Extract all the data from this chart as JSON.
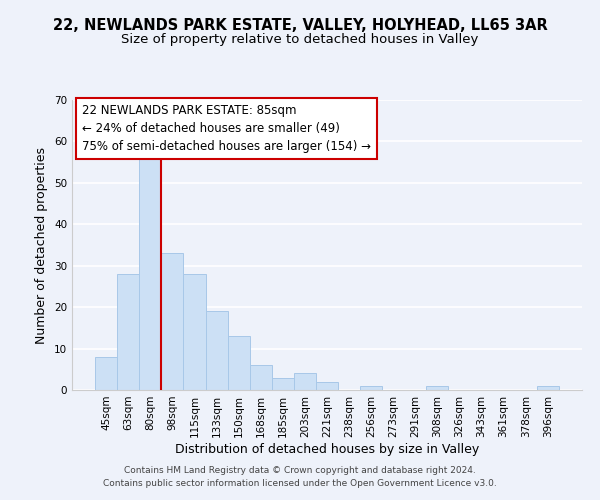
{
  "title": "22, NEWLANDS PARK ESTATE, VALLEY, HOLYHEAD, LL65 3AR",
  "subtitle": "Size of property relative to detached houses in Valley",
  "xlabel": "Distribution of detached houses by size in Valley",
  "ylabel": "Number of detached properties",
  "bar_color": "#cce0f5",
  "bar_edge_color": "#a8c8e8",
  "background_color": "#eef2fa",
  "grid_color": "#ffffff",
  "bin_labels": [
    "45sqm",
    "63sqm",
    "80sqm",
    "98sqm",
    "115sqm",
    "133sqm",
    "150sqm",
    "168sqm",
    "185sqm",
    "203sqm",
    "221sqm",
    "238sqm",
    "256sqm",
    "273sqm",
    "291sqm",
    "308sqm",
    "326sqm",
    "343sqm",
    "361sqm",
    "378sqm",
    "396sqm"
  ],
  "bar_values": [
    8,
    28,
    57,
    33,
    28,
    19,
    13,
    6,
    3,
    4,
    2,
    0,
    1,
    0,
    0,
    1,
    0,
    0,
    0,
    0,
    1
  ],
  "ylim": [
    0,
    70
  ],
  "yticks": [
    0,
    10,
    20,
    30,
    40,
    50,
    60,
    70
  ],
  "property_label": "22 NEWLANDS PARK ESTATE: 85sqm",
  "annotation_line1": "← 24% of detached houses are smaller (49)",
  "annotation_line2": "75% of semi-detached houses are larger (154) →",
  "vline_x_index": 2.5,
  "footer_line1": "Contains HM Land Registry data © Crown copyright and database right 2024.",
  "footer_line2": "Contains public sector information licensed under the Open Government Licence v3.0.",
  "title_fontsize": 10.5,
  "subtitle_fontsize": 9.5,
  "axis_label_fontsize": 9,
  "tick_fontsize": 7.5,
  "annotation_fontsize": 8.5,
  "footer_fontsize": 6.5
}
